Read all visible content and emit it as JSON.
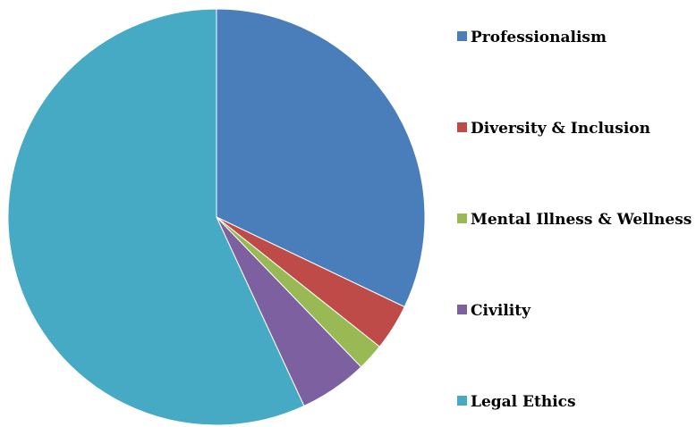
{
  "chart_data": {
    "type": "pie",
    "title": "",
    "legend_position": "right",
    "slices": [
      {
        "label": "Professionalism",
        "value": 32.1,
        "color": "#4A7EBB"
      },
      {
        "label": "Diversity & Inclusion",
        "value": 3.6,
        "color": "#BE4B48"
      },
      {
        "label": "Mental Illness & Wellness",
        "value": 2.1,
        "color": "#98B954"
      },
      {
        "label": "Civility",
        "value": 5.3,
        "color": "#7D60A0"
      },
      {
        "label": "Legal Ethics",
        "value": 56.9,
        "color": "#46AAC5"
      }
    ]
  }
}
